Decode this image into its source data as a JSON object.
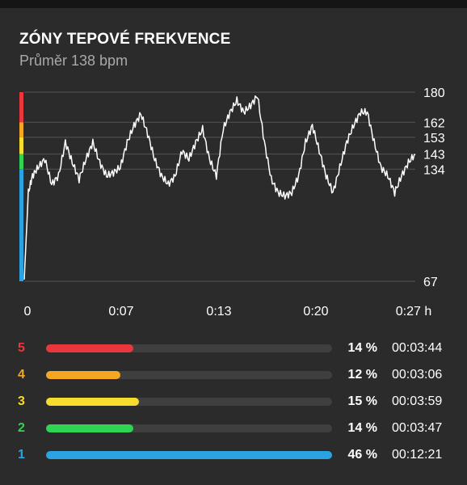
{
  "header": {
    "title": "ZÓNY TEPOVÉ FREKVENCE",
    "subtitle": "Průměr 138 bpm"
  },
  "colors": {
    "zone5": "#e8383b",
    "zone4": "#f5a623",
    "zone3": "#f7dc2e",
    "zone2": "#2fd452",
    "zone1": "#2ba3e3",
    "grid": "#555555",
    "line": "#ffffff"
  },
  "zones": [
    {
      "num": "5",
      "color": "#e8383b",
      "fraction": 0.14,
      "pct": "14 %",
      "time": "00:03:44"
    },
    {
      "num": "4",
      "color": "#f5a623",
      "fraction": 0.12,
      "pct": "12 %",
      "time": "00:03:06"
    },
    {
      "num": "3",
      "color": "#f7dc2e",
      "fraction": 0.15,
      "pct": "15 %",
      "time": "00:03:59"
    },
    {
      "num": "2",
      "color": "#2fd452",
      "fraction": 0.14,
      "pct": "14 %",
      "time": "00:03:47"
    },
    {
      "num": "1",
      "color": "#2ba3e3",
      "fraction": 0.46,
      "pct": "46 %",
      "time": "00:12:21"
    }
  ],
  "chart_data": {
    "type": "line",
    "ylim": [
      67,
      180
    ],
    "yticks": [
      "180",
      "162",
      "153",
      "143",
      "134",
      "67"
    ],
    "ytick_values": [
      180,
      162,
      153,
      143,
      134,
      67
    ],
    "xlim": [
      0,
      28.5
    ],
    "xticks": [
      "0",
      "0:07",
      "0:13",
      "0:20",
      "0:27 h"
    ],
    "xtick_values": [
      0,
      7,
      14,
      21,
      28
    ],
    "grid": true,
    "zone_boundaries": [
      180,
      162,
      153,
      143,
      134,
      67
    ],
    "series": [
      {
        "x": [
          0,
          0.3,
          0.6,
          1.0,
          1.5,
          2.0,
          2.5,
          3.0,
          3.5,
          4.0,
          4.5,
          5.0,
          5.5,
          6.0,
          6.5,
          7.0,
          7.5,
          8.0,
          8.5,
          9.0,
          9.5,
          10.0,
          10.5,
          11.0,
          11.5,
          12.0,
          12.5,
          13.0,
          13.5,
          14.0,
          14.5,
          15.0,
          15.5,
          16.0,
          16.5,
          17.0,
          17.5,
          18.0,
          18.5,
          19.0,
          19.5,
          20.0,
          20.5,
          21.0,
          21.5,
          22.0,
          22.5,
          23.0,
          23.5,
          24.0,
          24.5,
          25.0,
          25.5,
          26.0,
          26.5,
          27.0,
          27.5,
          28.0,
          28.5
        ],
        "y": [
          68,
          120,
          130,
          135,
          140,
          125,
          130,
          150,
          138,
          128,
          140,
          150,
          138,
          130,
          132,
          135,
          150,
          160,
          167,
          155,
          140,
          130,
          125,
          130,
          145,
          140,
          150,
          158,
          140,
          130,
          158,
          168,
          175,
          168,
          172,
          178,
          150,
          128,
          120,
          118,
          120,
          130,
          150,
          160,
          145,
          130,
          120,
          135,
          150,
          160,
          168,
          168,
          150,
          135,
          130,
          120,
          130,
          138,
          143
        ]
      }
    ]
  }
}
